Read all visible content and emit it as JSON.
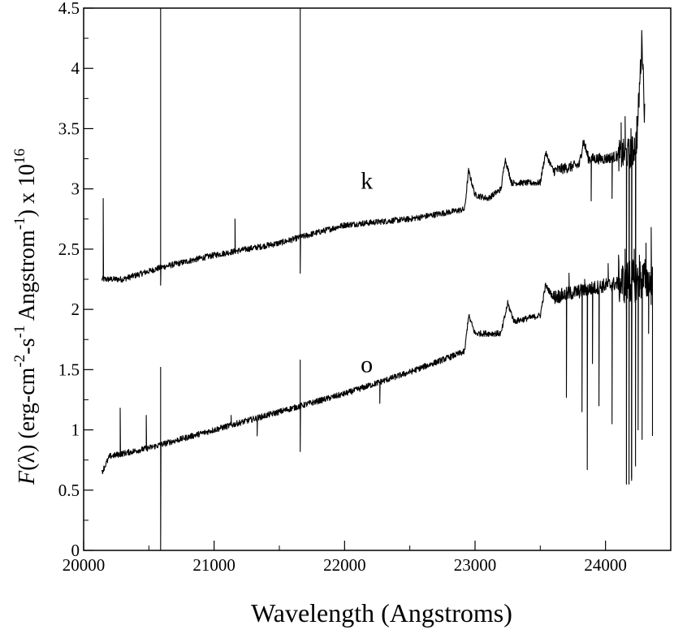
{
  "chart_data": {
    "type": "line",
    "title": "",
    "xlabel": "Wavelength (Angstroms)",
    "ylabel": {
      "f": "F",
      "lambda": "(λ)",
      "unit_start": "(erg-cm",
      "exp_cm": "-2",
      "unit_s": "-s",
      "exp_s": "-1",
      "unit_ang": "Angstrom",
      "exp_ang": "-1",
      "unit_end": ") x 10",
      "exp_scale": "16"
    },
    "xlim": [
      20000,
      24500
    ],
    "ylim": [
      0,
      4.5
    ],
    "xticks": [
      20000,
      21000,
      22000,
      23000,
      24000
    ],
    "xtick_labels": [
      "20000",
      "21000",
      "22000",
      "23000",
      "24000"
    ],
    "yticks": [
      0,
      0.5,
      1,
      1.5,
      2,
      2.5,
      3,
      3.5,
      4,
      4.5
    ],
    "ytick_labels": [
      "0",
      "0.5",
      "1",
      "1.5",
      "2",
      "2.5",
      "3",
      "3.5",
      "4",
      "4.5"
    ],
    "grid": false,
    "series": [
      {
        "name": "k",
        "label_at": [
          22170,
          3.0
        ],
        "x_range": [
          20140,
          24300
        ],
        "continuum": [
          [
            20140,
            2.25
          ],
          [
            20300,
            2.25
          ],
          [
            20600,
            2.35
          ],
          [
            21000,
            2.45
          ],
          [
            21500,
            2.55
          ],
          [
            22000,
            2.7
          ],
          [
            22500,
            2.75
          ],
          [
            22920,
            2.83
          ],
          [
            22950,
            3.15
          ],
          [
            23000,
            2.95
          ],
          [
            23100,
            2.92
          ],
          [
            23200,
            3.0
          ],
          [
            23230,
            3.25
          ],
          [
            23280,
            3.05
          ],
          [
            23500,
            3.05
          ],
          [
            23540,
            3.3
          ],
          [
            23600,
            3.15
          ],
          [
            23800,
            3.2
          ],
          [
            23830,
            3.4
          ],
          [
            23870,
            3.25
          ],
          [
            24000,
            3.25
          ],
          [
            24200,
            3.3
          ],
          [
            24240,
            3.4
          ],
          [
            24280,
            4.25
          ],
          [
            24300,
            3.6
          ]
        ],
        "noise": [
          0.025,
          0.025,
          0.045,
          0.13
        ],
        "spikes": [
          [
            20150,
            2.92
          ],
          [
            20590,
            4.5
          ],
          [
            20590,
            2.2
          ],
          [
            21160,
            2.75
          ],
          [
            21660,
            4.5
          ],
          [
            21660,
            2.3
          ],
          [
            23890,
            2.9
          ],
          [
            24050,
            2.92
          ],
          [
            24120,
            3.55
          ],
          [
            24150,
            3.6
          ],
          [
            24160,
            2.0
          ],
          [
            24170,
            3.35
          ],
          [
            24180,
            0.55
          ],
          [
            24195,
            3.5
          ],
          [
            24200,
            0.6
          ],
          [
            24210,
            3.2
          ],
          [
            24230,
            0.7
          ],
          [
            24240,
            3.6
          ]
        ]
      },
      {
        "name": "o",
        "label_at": [
          22170,
          1.48
        ],
        "x_range": [
          20140,
          24360
        ],
        "continuum": [
          [
            20140,
            0.65
          ],
          [
            20200,
            0.78
          ],
          [
            20500,
            0.85
          ],
          [
            21000,
            1.0
          ],
          [
            21500,
            1.15
          ],
          [
            22000,
            1.3
          ],
          [
            22500,
            1.48
          ],
          [
            22920,
            1.65
          ],
          [
            22950,
            1.95
          ],
          [
            23000,
            1.8
          ],
          [
            23200,
            1.8
          ],
          [
            23250,
            2.05
          ],
          [
            23300,
            1.9
          ],
          [
            23500,
            1.95
          ],
          [
            23540,
            2.2
          ],
          [
            23600,
            2.1
          ],
          [
            24000,
            2.2
          ],
          [
            24300,
            2.25
          ],
          [
            24360,
            2.2
          ]
        ],
        "noise": [
          0.025,
          0.025,
          0.06,
          0.18
        ],
        "spikes": [
          [
            20280,
            1.18
          ],
          [
            20480,
            1.12
          ],
          [
            20590,
            1.52
          ],
          [
            20590,
            0.0
          ],
          [
            21130,
            1.12
          ],
          [
            21330,
            0.95
          ],
          [
            21660,
            1.58
          ],
          [
            21660,
            0.82
          ],
          [
            22270,
            1.22
          ],
          [
            23700,
            1.27
          ],
          [
            23720,
            2.3
          ],
          [
            23820,
            1.15
          ],
          [
            23840,
            2.25
          ],
          [
            23860,
            0.67
          ],
          [
            23900,
            1.55
          ],
          [
            23950,
            1.2
          ],
          [
            24020,
            2.38
          ],
          [
            24050,
            1.05
          ],
          [
            24100,
            2.45
          ],
          [
            24150,
            2.5
          ],
          [
            24160,
            0.55
          ],
          [
            24185,
            2.4
          ],
          [
            24200,
            0.58
          ],
          [
            24220,
            2.5
          ],
          [
            24250,
            1.0
          ],
          [
            24260,
            2.45
          ],
          [
            24280,
            0.92
          ],
          [
            24310,
            2.55
          ],
          [
            24330,
            1.8
          ],
          [
            24350,
            2.68
          ],
          [
            24360,
            0.95
          ]
        ]
      }
    ]
  }
}
